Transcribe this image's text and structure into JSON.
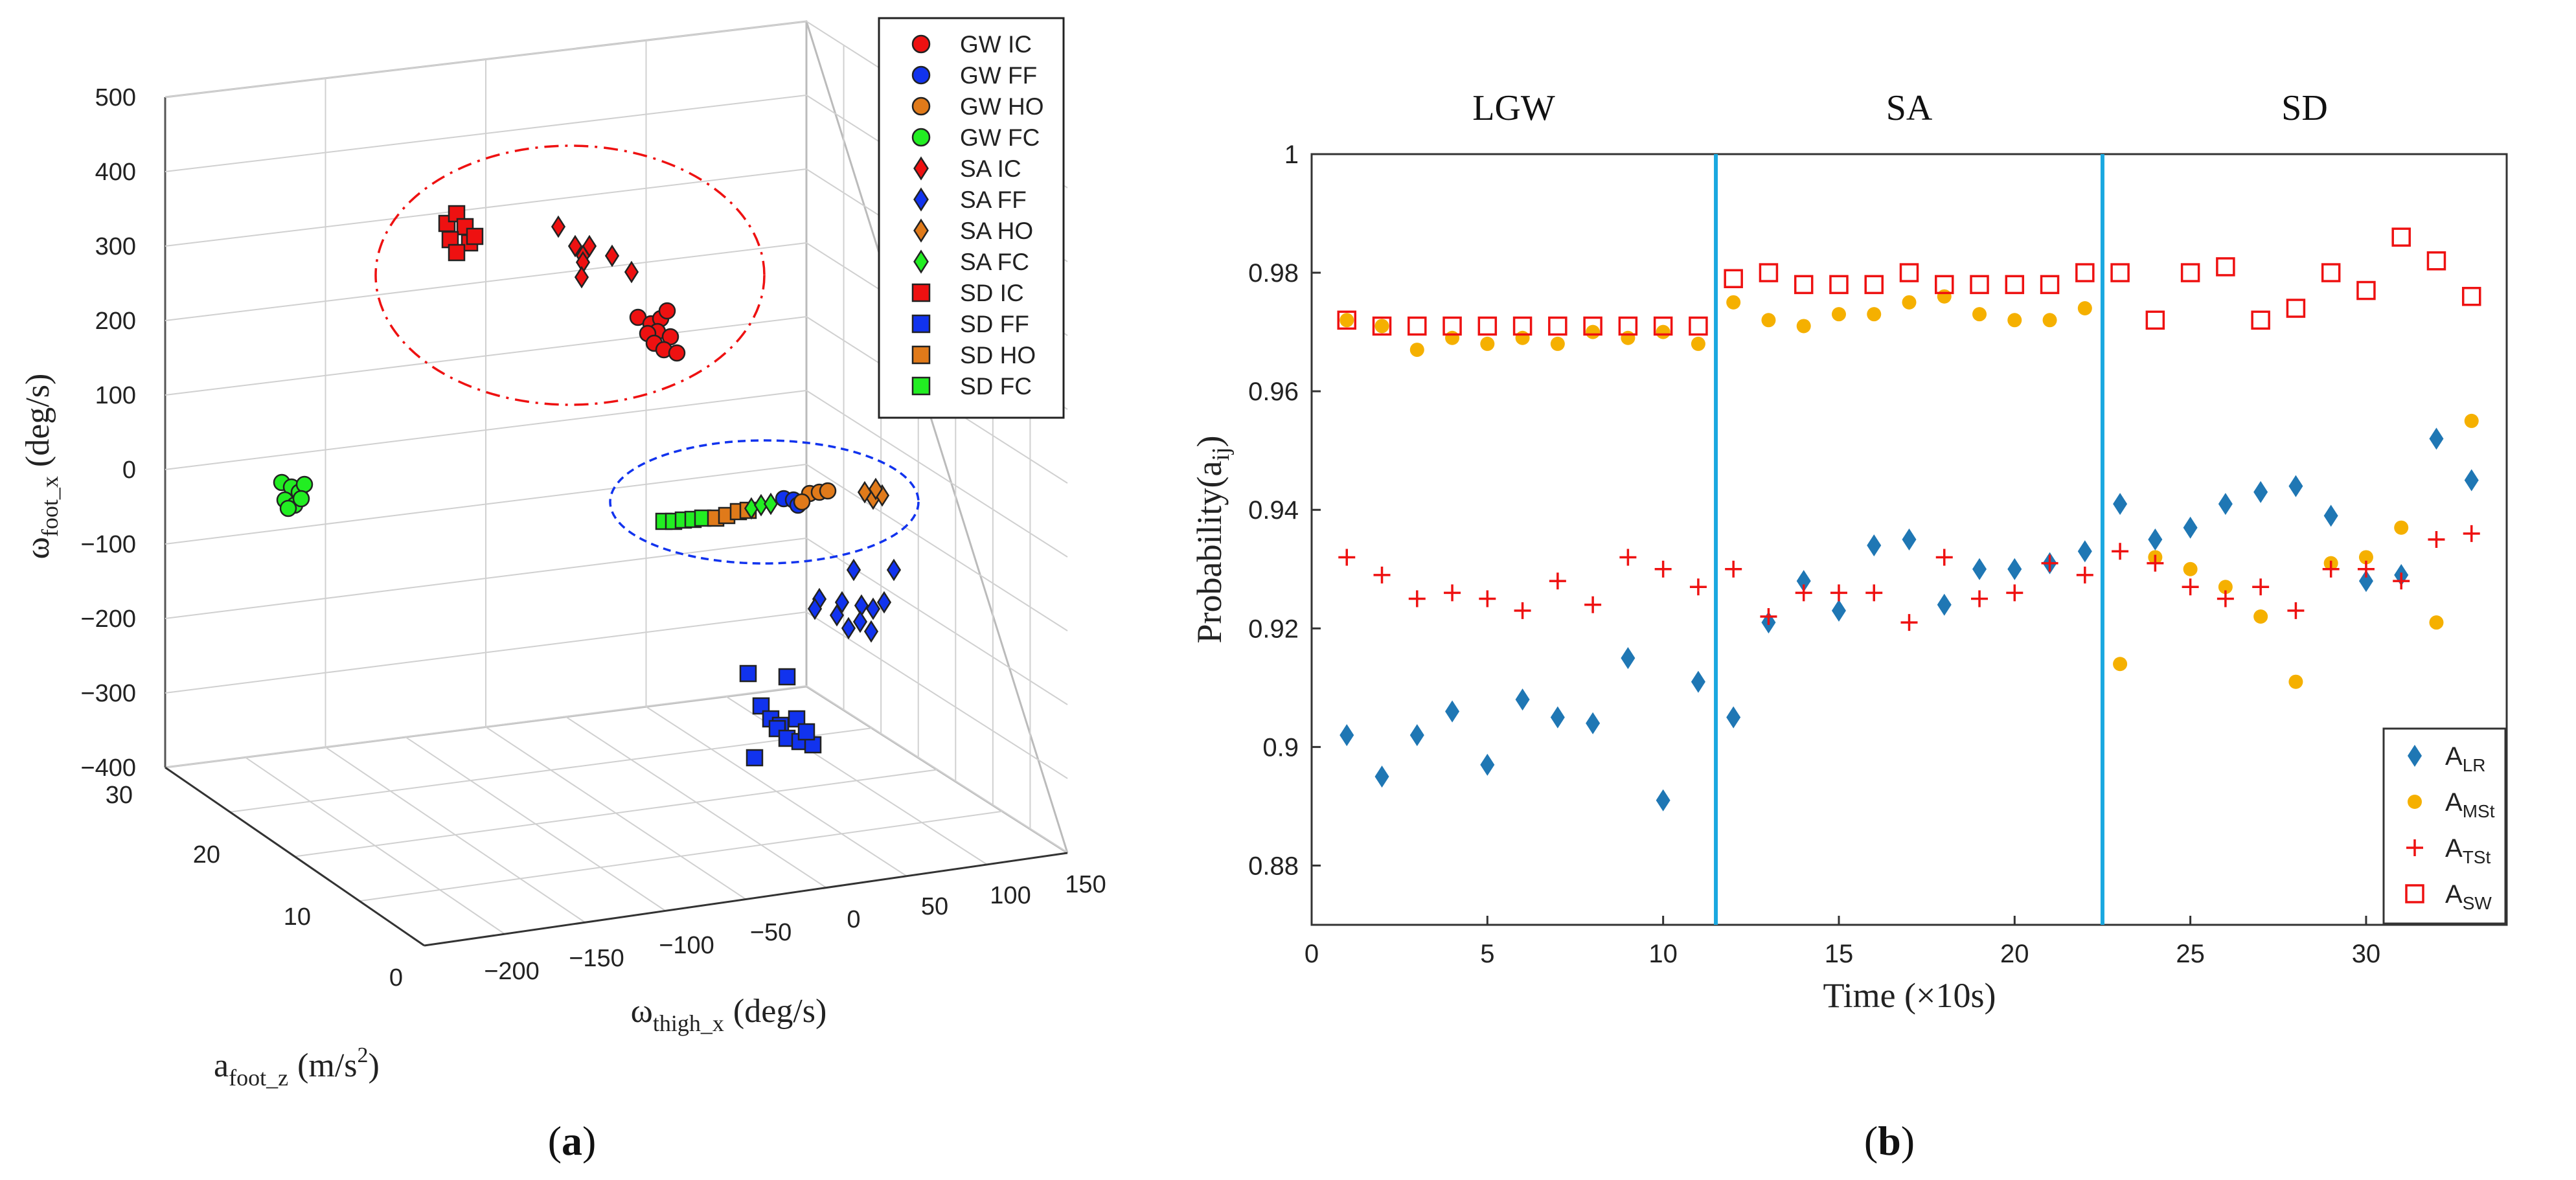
{
  "panel_a": {
    "caption": "(a)",
    "caption_parts": [
      "(",
      "a",
      ")"
    ],
    "chart_data": {
      "type": "scatter3d",
      "zlabel": "ω",
      "zlabel_sub": "foot_x",
      "zlabel_unit": "(deg/s)",
      "xlabel": "ω",
      "xlabel_sub": "thigh_x",
      "xlabel_unit": "(deg/s)",
      "ylabel": "a",
      "ylabel_sub": "foot_z",
      "ylabel_unit": "(m/s",
      "ylabel_unit_sup": "2",
      "ylabel_unit_end": ")",
      "z_ticks": [
        "500",
        "400",
        "300",
        "200",
        "100",
        "0",
        "−100",
        "−200",
        "−300",
        "−400"
      ],
      "x_ticks": [
        "−200",
        "−150",
        "−100",
        "−50",
        "0",
        "50",
        "100",
        "150"
      ],
      "y_ticks": [
        "30",
        "20",
        "10",
        "0"
      ],
      "legend": [
        {
          "label": "GW IC",
          "marker": "circle",
          "color": "#ee1111"
        },
        {
          "label": "GW FF",
          "marker": "circle",
          "color": "#1133ee"
        },
        {
          "label": "GW HO",
          "marker": "circle",
          "color": "#e07a1a"
        },
        {
          "label": "GW FC",
          "marker": "circle",
          "color": "#22ee22"
        },
        {
          "label": "SA IC",
          "marker": "diamond",
          "color": "#ee1111"
        },
        {
          "label": "SA FF",
          "marker": "diamond",
          "color": "#1133ee"
        },
        {
          "label": "SA HO",
          "marker": "diamond",
          "color": "#e07a1a"
        },
        {
          "label": "SA FC",
          "marker": "diamond",
          "color": "#22ee22"
        },
        {
          "label": "SD IC",
          "marker": "square",
          "color": "#ee1111"
        },
        {
          "label": "SD FF",
          "marker": "square",
          "color": "#1133ee"
        },
        {
          "label": "SD HO",
          "marker": "square",
          "color": "#e07a1a"
        },
        {
          "label": "SD FC",
          "marker": "square",
          "color": "#22ee22"
        }
      ]
    }
  },
  "panel_b": {
    "caption": "(b)",
    "caption_parts": [
      "(",
      "b",
      ")"
    ],
    "chart_data": {
      "type": "scatter",
      "xlabel": "Time (×10s)",
      "ylabel": "Probability(a",
      "ylabel_sub": "ij",
      "ylabel_end": ")",
      "xlim": [
        0,
        34
      ],
      "ylim": [
        0.87,
        1.0
      ],
      "x_ticks": [
        0,
        5,
        10,
        15,
        20,
        25,
        30
      ],
      "x_tick_labels": [
        "0",
        "5",
        "10",
        "15",
        "20",
        "25",
        "30"
      ],
      "y_ticks": [
        0.88,
        0.9,
        0.92,
        0.94,
        0.96,
        0.98,
        1.0
      ],
      "y_tick_labels": [
        "0.88",
        "0.9",
        "0.92",
        "0.94",
        "0.96",
        "0.98",
        "1"
      ],
      "phase_lines": [
        11.5,
        22.5
      ],
      "phase_line_color": "#1aa8e0",
      "phase_labels": [
        {
          "label": "LGW",
          "x": 5.75
        },
        {
          "label": "SA",
          "x": 17
        },
        {
          "label": "SD",
          "x": 28.25
        }
      ],
      "x": [
        1,
        2,
        3,
        4,
        5,
        6,
        7,
        8,
        9,
        10,
        11,
        12,
        13,
        14,
        15,
        16,
        17,
        18,
        19,
        20,
        21,
        22,
        23,
        24,
        25,
        26,
        27,
        28,
        29,
        30,
        31,
        32,
        33
      ],
      "series": [
        {
          "name": "A",
          "sub": "LR",
          "marker": "diamond",
          "color": "#1f77b4",
          "values": [
            0.902,
            0.895,
            0.902,
            0.906,
            0.897,
            0.908,
            0.905,
            0.904,
            0.915,
            0.891,
            0.911,
            0.905,
            0.921,
            0.928,
            0.923,
            0.934,
            0.935,
            0.924,
            0.93,
            0.93,
            0.931,
            0.933,
            0.941,
            0.935,
            0.937,
            0.941,
            0.943,
            0.944,
            0.939,
            0.928,
            0.929,
            0.952,
            0.945
          ]
        },
        {
          "name": "A",
          "sub": "MSt",
          "marker": "circle",
          "color": "#f5b000",
          "values": [
            0.972,
            0.971,
            0.967,
            0.969,
            0.968,
            0.969,
            0.968,
            0.97,
            0.969,
            0.97,
            0.968,
            0.975,
            0.972,
            0.971,
            0.973,
            0.973,
            0.975,
            0.976,
            0.973,
            0.972,
            0.972,
            0.974,
            0.914,
            0.932,
            0.93,
            0.927,
            0.922,
            0.911,
            0.931,
            0.932,
            0.937,
            0.921,
            0.955
          ]
        },
        {
          "name": "A",
          "sub": "TSt",
          "marker": "plus",
          "color": "#ee1111",
          "values": [
            0.932,
            0.929,
            0.925,
            0.926,
            0.925,
            0.923,
            0.928,
            0.924,
            0.932,
            0.93,
            0.927,
            0.93,
            0.922,
            0.926,
            0.926,
            0.926,
            0.921,
            0.932,
            0.925,
            0.926,
            0.931,
            0.929,
            0.933,
            0.931,
            0.927,
            0.925,
            0.927,
            0.923,
            0.93,
            0.93,
            0.928,
            0.935,
            0.936
          ]
        },
        {
          "name": "A",
          "sub": "SW",
          "marker": "square-open",
          "color": "#ee1111",
          "values": [
            0.972,
            0.971,
            0.971,
            0.971,
            0.971,
            0.971,
            0.971,
            0.971,
            0.971,
            0.971,
            0.971,
            0.979,
            0.98,
            0.978,
            0.978,
            0.978,
            0.98,
            0.978,
            0.978,
            0.978,
            0.978,
            0.98,
            0.98,
            0.972,
            0.98,
            0.981,
            0.972,
            0.974,
            0.98,
            0.977,
            0.986,
            0.982,
            0.976
          ]
        }
      ]
    }
  }
}
